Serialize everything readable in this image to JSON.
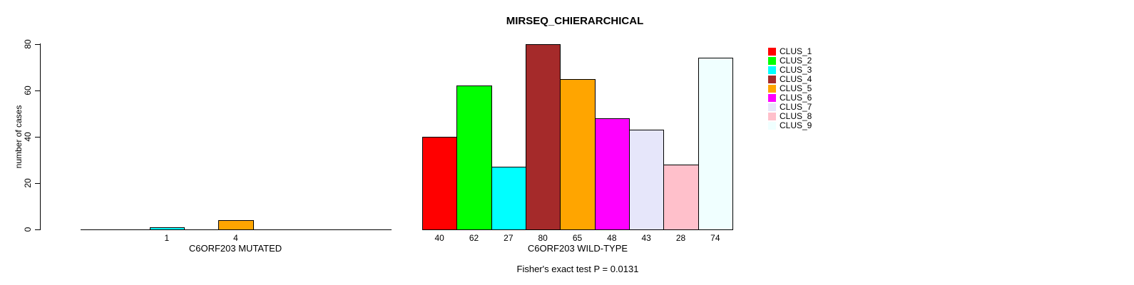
{
  "chart_data": {
    "type": "bar",
    "title": "MIRSEQ_CHIERARCHICAL",
    "ylabel": "number of cases",
    "ylim": [
      0,
      80
    ],
    "yticks": [
      0,
      20,
      40,
      60,
      80
    ],
    "grid": false,
    "legend_position": "right",
    "legend": [
      {
        "label": "CLUS_1",
        "color": "#FF0000"
      },
      {
        "label": "CLUS_2",
        "color": "#00FF00"
      },
      {
        "label": "CLUS_3",
        "color": "#00FFFF"
      },
      {
        "label": "CLUS_4",
        "color": "#A52A2A"
      },
      {
        "label": "CLUS_5",
        "color": "#FFA500"
      },
      {
        "label": "CLUS_6",
        "color": "#FF00FF"
      },
      {
        "label": "CLUS_7",
        "color": "#E6E6FA"
      },
      {
        "label": "CLUS_8",
        "color": "#FFC0CB"
      },
      {
        "label": "CLUS_9",
        "color": "#F0FFFF"
      }
    ],
    "groups": [
      {
        "label": "C6ORF203 MUTATED",
        "values": [
          0,
          0,
          1,
          0,
          4,
          0,
          0,
          0,
          0
        ],
        "bar_labels": [
          "",
          "",
          "1",
          "",
          "4",
          "",
          "",
          "",
          ""
        ]
      },
      {
        "label": "C6ORF203 WILD-TYPE",
        "values": [
          40,
          62,
          27,
          80,
          65,
          48,
          43,
          28,
          74
        ],
        "bar_labels": [
          "40",
          "62",
          "27",
          "80",
          "65",
          "48",
          "43",
          "28",
          "74"
        ]
      }
    ],
    "annotation": "Fisher's exact test P = 0.0131"
  }
}
